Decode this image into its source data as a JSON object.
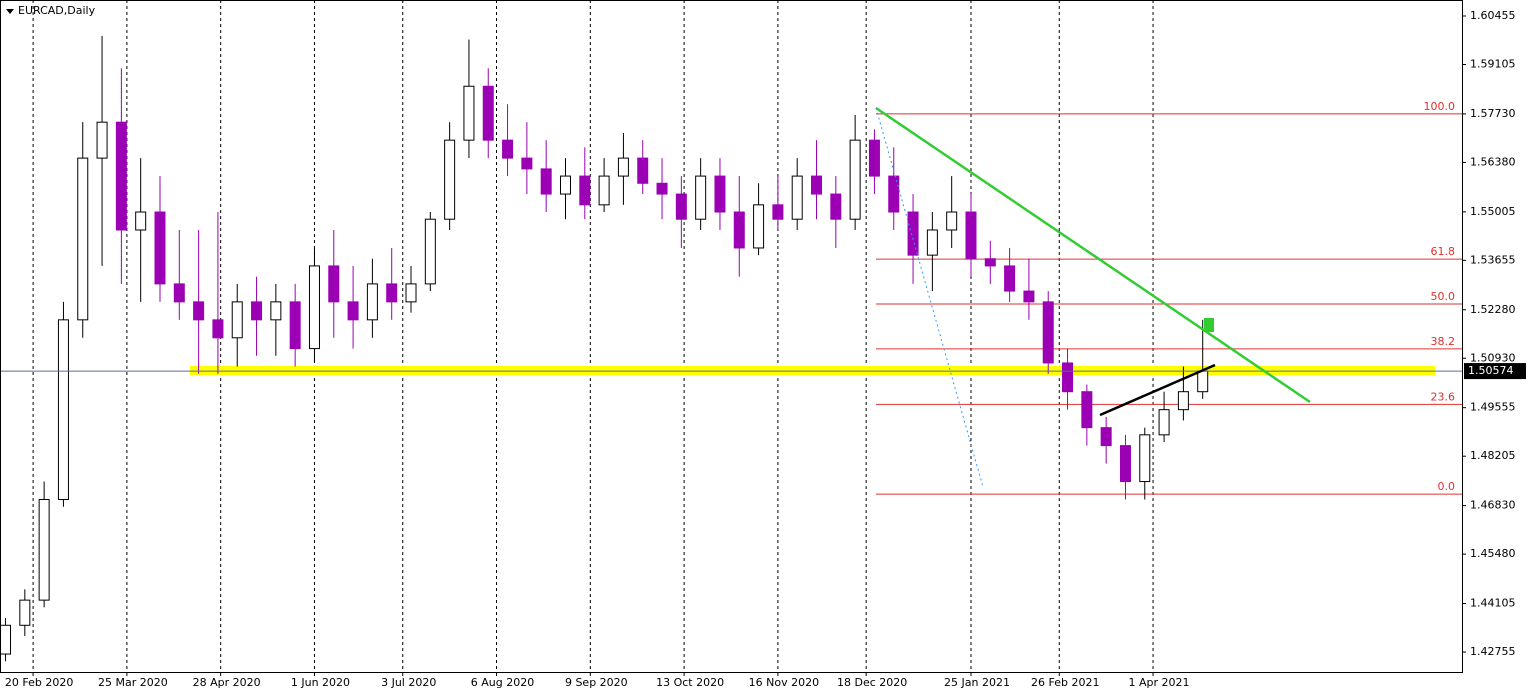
{
  "chart_data": {
    "type": "candlestick",
    "title": "EURCAD,Daily",
    "bull_color": "#ffffff",
    "bear_color": "#9b00b4",
    "xlim": [
      "2020-02-08",
      "2021-07-22"
    ],
    "ylim": [
      1.422,
      1.609
    ],
    "xticks": [
      {
        "value": "2020-02-20",
        "label": "20 Feb 2020"
      },
      {
        "value": "2020-03-25",
        "label": "25 Mar 2020"
      },
      {
        "value": "2020-04-28",
        "label": "28 Apr 2020"
      },
      {
        "value": "2020-06-01",
        "label": "1 Jun 2020"
      },
      {
        "value": "2020-07-03",
        "label": "3 Jul 2020"
      },
      {
        "value": "2020-08-06",
        "label": "6 Aug 2020"
      },
      {
        "value": "2020-09-09",
        "label": "9 Sep 2020"
      },
      {
        "value": "2020-10-13",
        "label": "13 Oct 2020"
      },
      {
        "value": "2020-11-16",
        "label": "16 Nov 2020"
      },
      {
        "value": "2020-12-18",
        "label": "18 Dec 2020"
      },
      {
        "value": "2021-01-25",
        "label": "25 Jan 2021"
      },
      {
        "value": "2021-02-26",
        "label": "26 Feb 2021"
      },
      {
        "value": "2021-04-01",
        "label": "1 Apr 2021"
      }
    ],
    "yticks": [
      1.60455,
      1.59105,
      {
        "value": 1.5773,
        "label": "1.57730"
      },
      {
        "value": 1.5638,
        "label": "1.56380"
      },
      1.55005,
      1.53655,
      {
        "value": 1.5228,
        "label": "1.52280"
      },
      {
        "value": 1.5093,
        "label": "1.50930"
      },
      1.49555,
      1.48205,
      {
        "value": 1.4683,
        "label": "1.46830"
      },
      {
        "value": 1.4548,
        "label": "1.45480"
      },
      1.44105,
      1.42755
    ],
    "current_price": 1.50574,
    "fibonacci": {
      "high": 1.5773,
      "low": 1.4715,
      "levels": [
        {
          "value": 100,
          "label": "100.0"
        },
        {
          "value": 61.8,
          "label": "61.8"
        },
        {
          "value": 50,
          "label": "50.0"
        },
        {
          "value": 38.2,
          "label": "38.2"
        },
        {
          "value": 23.6,
          "label": "23.6"
        },
        {
          "value": 0,
          "label": "0.0"
        }
      ]
    },
    "x": [
      "2020-02-10",
      "2020-02-17",
      "2020-02-24",
      "2020-03-02",
      "2020-03-09",
      "2020-03-16",
      "2020-03-23",
      "2020-03-30",
      "2020-04-06",
      "2020-04-13",
      "2020-04-20",
      "2020-04-27",
      "2020-05-04",
      "2020-05-11",
      "2020-05-18",
      "2020-05-25",
      "2020-06-01",
      "2020-06-08",
      "2020-06-15",
      "2020-06-22",
      "2020-06-29",
      "2020-07-06",
      "2020-07-13",
      "2020-07-20",
      "2020-07-27",
      "2020-08-03",
      "2020-08-10",
      "2020-08-17",
      "2020-08-24",
      "2020-08-31",
      "2020-09-07",
      "2020-09-14",
      "2020-09-21",
      "2020-09-28",
      "2020-10-05",
      "2020-10-12",
      "2020-10-19",
      "2020-10-26",
      "2020-11-02",
      "2020-11-09",
      "2020-11-16",
      "2020-11-23",
      "2020-11-30",
      "2020-12-07",
      "2020-12-14",
      "2020-12-21",
      "2020-12-28",
      "2021-01-04",
      "2021-01-11",
      "2021-01-18",
      "2021-01-25",
      "2021-02-01",
      "2021-02-08",
      "2021-02-15",
      "2021-02-22",
      "2021-03-01",
      "2021-03-08",
      "2021-03-15",
      "2021-03-22",
      "2021-03-29",
      "2021-04-05",
      "2021-04-12",
      "2021-04-19"
    ],
    "open": [
      1.427,
      1.435,
      1.442,
      1.47,
      1.52,
      1.565,
      1.575,
      1.545,
      1.55,
      1.53,
      1.525,
      1.52,
      1.515,
      1.525,
      1.52,
      1.525,
      1.512,
      1.535,
      1.525,
      1.52,
      1.53,
      1.525,
      1.53,
      1.548,
      1.57,
      1.585,
      1.57,
      1.565,
      1.562,
      1.555,
      1.56,
      1.552,
      1.56,
      1.565,
      1.558,
      1.555,
      1.548,
      1.56,
      1.55,
      1.54,
      1.552,
      1.548,
      1.56,
      1.555,
      1.548,
      1.57,
      1.56,
      1.55,
      1.538,
      1.545,
      1.55,
      1.537,
      1.535,
      1.528,
      1.525,
      1.508,
      1.5,
      1.49,
      1.485,
      1.475,
      1.488,
      1.495,
      1.5
    ],
    "high": [
      1.437,
      1.445,
      1.475,
      1.525,
      1.575,
      1.599,
      1.59,
      1.565,
      1.56,
      1.545,
      1.545,
      1.55,
      1.53,
      1.532,
      1.53,
      1.53,
      1.54,
      1.545,
      1.535,
      1.537,
      1.54,
      1.535,
      1.55,
      1.575,
      1.598,
      1.59,
      1.58,
      1.575,
      1.57,
      1.565,
      1.568,
      1.565,
      1.572,
      1.57,
      1.565,
      1.56,
      1.565,
      1.565,
      1.56,
      1.558,
      1.56,
      1.565,
      1.57,
      1.56,
      1.577,
      1.573,
      1.568,
      1.555,
      1.55,
      1.56,
      1.555,
      1.542,
      1.54,
      1.537,
      1.528,
      1.512,
      1.502,
      1.493,
      1.488,
      1.49,
      1.5,
      1.507,
      1.52
    ],
    "low": [
      1.425,
      1.432,
      1.44,
      1.468,
      1.515,
      1.535,
      1.53,
      1.525,
      1.525,
      1.52,
      1.505,
      1.505,
      1.507,
      1.51,
      1.51,
      1.507,
      1.508,
      1.515,
      1.512,
      1.515,
      1.52,
      1.522,
      1.528,
      1.545,
      1.565,
      1.565,
      1.56,
      1.555,
      1.55,
      1.548,
      1.548,
      1.55,
      1.552,
      1.555,
      1.548,
      1.54,
      1.545,
      1.545,
      1.532,
      1.538,
      1.545,
      1.545,
      1.548,
      1.54,
      1.545,
      1.555,
      1.545,
      1.53,
      1.528,
      1.54,
      1.532,
      1.53,
      1.525,
      1.52,
      1.505,
      1.495,
      1.485,
      1.48,
      1.47,
      1.47,
      1.486,
      1.492,
      1.498
    ],
    "close": [
      1.435,
      1.442,
      1.47,
      1.52,
      1.565,
      1.575,
      1.545,
      1.55,
      1.53,
      1.525,
      1.52,
      1.515,
      1.525,
      1.52,
      1.525,
      1.512,
      1.535,
      1.525,
      1.52,
      1.53,
      1.525,
      1.53,
      1.548,
      1.57,
      1.585,
      1.57,
      1.565,
      1.562,
      1.555,
      1.56,
      1.552,
      1.56,
      1.565,
      1.558,
      1.555,
      1.548,
      1.56,
      1.55,
      1.54,
      1.552,
      1.548,
      1.56,
      1.555,
      1.548,
      1.57,
      1.56,
      1.55,
      1.538,
      1.545,
      1.55,
      1.537,
      1.535,
      1.528,
      1.525,
      1.508,
      1.5,
      1.49,
      1.485,
      1.475,
      1.488,
      1.495,
      1.5,
      1.50574
    ]
  }
}
